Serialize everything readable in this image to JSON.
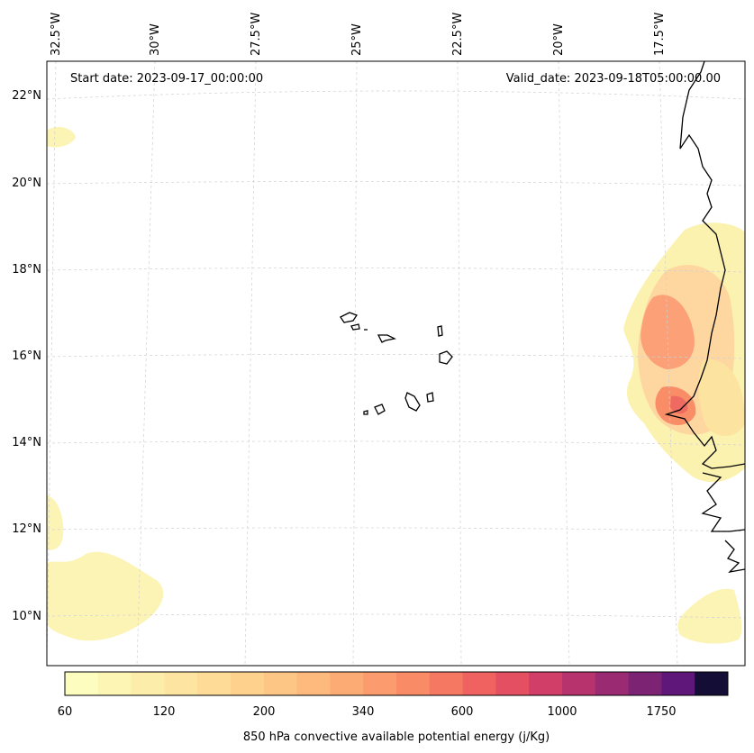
{
  "map": {
    "start_date": "Start date: 2023-09-17_00:00:00",
    "valid_date": "Valid_date: 2023-09-18T05:00:00.00",
    "lon_labels": [
      "32.5°W",
      "30°W",
      "27.5°W",
      "25°W",
      "22.5°W",
      "20°W",
      "17.5°W"
    ],
    "lat_labels": [
      "22°N",
      "20°N",
      "18°N",
      "16°N",
      "14°N",
      "12°N",
      "10°N"
    ],
    "land_outline_color": "#000000",
    "gridline_color": "#d0d0d0"
  },
  "colorbar": {
    "title": "850 hPa convective available potential energy (j/Kg)",
    "tick_labels": [
      "60",
      "120",
      "200",
      "340",
      "600",
      "1000",
      "1750"
    ],
    "colors": [
      "#fcfdbf",
      "#fcf5b4",
      "#fdedaa",
      "#fde4a0",
      "#fedb96",
      "#fed18d",
      "#fec684",
      "#feb97c",
      "#fdab74",
      "#fc9c6e",
      "#f98b67",
      "#f57862",
      "#ef6260",
      "#e44f62",
      "#d13e68",
      "#b7336e",
      "#9a2b72",
      "#7d2373",
      "#5f187a",
      "#140e36"
    ],
    "color_bin_count": 20
  }
}
